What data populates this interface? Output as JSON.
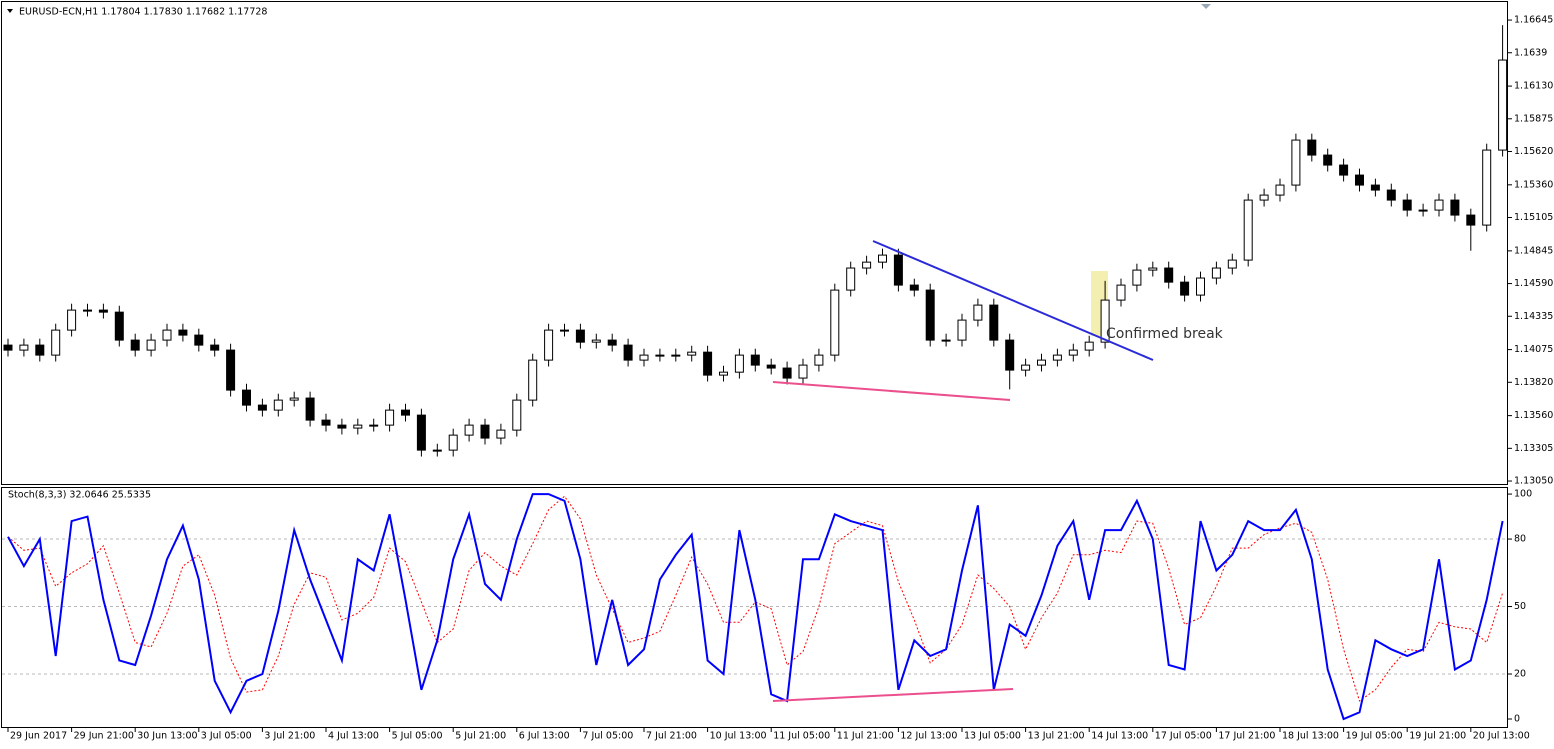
{
  "chart_data": [
    {
      "type": "candlestick",
      "title": "EURUSD-ECN,H1  1.17804 1.17830 1.17682 1.17728",
      "annotation": "Confirmed break",
      "open": [
        1.1411,
        1.14071,
        1.1411,
        1.14032,
        1.14227,
        1.14383,
        1.14383,
        1.14367,
        1.14149,
        1.14071,
        1.14149,
        1.14227,
        1.14188,
        1.1411,
        1.14071,
        1.13759,
        1.13642,
        1.13603,
        1.13681,
        1.13697,
        1.13525,
        1.13486,
        1.13463,
        1.13486,
        1.13486,
        1.13603,
        1.13564,
        1.13291,
        1.13291,
        1.13408,
        1.13486,
        1.13385,
        1.13447,
        1.13681,
        1.13993,
        1.14227,
        1.14227,
        1.14133,
        1.14149,
        1.1411,
        1.13993,
        1.14032,
        1.14032,
        1.14032,
        1.14055,
        1.13876,
        1.13899,
        1.14032,
        1.13954,
        1.13931,
        1.13853,
        1.13954,
        1.14032,
        1.14539,
        1.14711,
        1.14757,
        1.14812,
        1.14578,
        1.14539,
        1.14149,
        1.14149,
        1.14305,
        1.14422,
        1.14149,
        1.13915,
        1.13954,
        1.13993,
        1.14032,
        1.14071,
        1.14133,
        1.14461,
        1.14578,
        1.14695,
        1.14711,
        1.14601,
        1.145,
        1.14633,
        1.14711,
        1.14773,
        1.15241,
        1.1528,
        1.15358,
        1.15709,
        1.15592,
        1.15514,
        1.15436,
        1.15358,
        1.15319,
        1.15241,
        1.15163,
        1.15163,
        1.15241,
        1.15124,
        1.15046,
        1.15631
      ],
      "high": [
        1.1416,
        1.1416,
        1.1416,
        1.14277,
        1.14433,
        1.14433,
        1.14433,
        1.14417,
        1.14199,
        1.14199,
        1.14277,
        1.14277,
        1.14238,
        1.1416,
        1.14121,
        1.13809,
        1.13692,
        1.13731,
        1.13747,
        1.13747,
        1.13575,
        1.13536,
        1.13536,
        1.13536,
        1.13653,
        1.13653,
        1.13614,
        1.13341,
        1.13458,
        1.13536,
        1.13536,
        1.13497,
        1.13731,
        1.14043,
        1.14277,
        1.14277,
        1.14277,
        1.14199,
        1.14199,
        1.1416,
        1.14082,
        1.14082,
        1.14082,
        1.14105,
        1.14105,
        1.13949,
        1.14082,
        1.14082,
        1.14004,
        1.13981,
        1.14004,
        1.14082,
        1.14589,
        1.14761,
        1.14807,
        1.14862,
        1.14862,
        1.14628,
        1.14589,
        1.14199,
        1.14355,
        1.14472,
        1.14472,
        1.14199,
        1.14004,
        1.14043,
        1.14082,
        1.14121,
        1.14183,
        1.14611,
        1.14628,
        1.14745,
        1.14761,
        1.14761,
        1.14651,
        1.14683,
        1.14761,
        1.14823,
        1.15291,
        1.1533,
        1.15408,
        1.15759,
        1.15759,
        1.15642,
        1.15564,
        1.15486,
        1.15408,
        1.15369,
        1.15291,
        1.15213,
        1.15291,
        1.15291,
        1.15174,
        1.15681,
        1.16605
      ],
      "low": [
        1.14021,
        1.14021,
        1.13982,
        1.13982,
        1.14177,
        1.14333,
        1.14317,
        1.14099,
        1.14021,
        1.14021,
        1.14099,
        1.14138,
        1.1406,
        1.14021,
        1.13709,
        1.13592,
        1.13553,
        1.13553,
        1.13631,
        1.13475,
        1.13436,
        1.13413,
        1.13413,
        1.13436,
        1.13436,
        1.13514,
        1.13241,
        1.13241,
        1.13241,
        1.13358,
        1.13335,
        1.13335,
        1.13397,
        1.13631,
        1.13943,
        1.14177,
        1.14083,
        1.14083,
        1.1406,
        1.13943,
        1.13943,
        1.13982,
        1.13982,
        1.13982,
        1.13826,
        1.13826,
        1.13849,
        1.13904,
        1.13881,
        1.13803,
        1.13803,
        1.13904,
        1.13982,
        1.14489,
        1.14661,
        1.14707,
        1.14528,
        1.14489,
        1.14099,
        1.14099,
        1.14099,
        1.14255,
        1.14099,
        1.13765,
        1.13865,
        1.13904,
        1.13943,
        1.13982,
        1.14021,
        1.14083,
        1.14411,
        1.14528,
        1.14645,
        1.14551,
        1.1445,
        1.1445,
        1.14583,
        1.14661,
        1.14723,
        1.15191,
        1.1523,
        1.15308,
        1.15542,
        1.15464,
        1.15386,
        1.15308,
        1.15269,
        1.15191,
        1.15113,
        1.15113,
        1.15113,
        1.15074,
        1.14846,
        1.14996,
        1.15581
      ],
      "close": [
        1.14071,
        1.1411,
        1.14032,
        1.14227,
        1.14383,
        1.14383,
        1.14367,
        1.14149,
        1.14071,
        1.14149,
        1.14227,
        1.14188,
        1.1411,
        1.14071,
        1.13759,
        1.13642,
        1.13603,
        1.13681,
        1.13697,
        1.13525,
        1.13486,
        1.13463,
        1.13486,
        1.13486,
        1.13603,
        1.13564,
        1.13291,
        1.13291,
        1.13408,
        1.13486,
        1.13385,
        1.13447,
        1.13681,
        1.13993,
        1.14227,
        1.14227,
        1.14133,
        1.14149,
        1.1411,
        1.13993,
        1.14032,
        1.14032,
        1.14032,
        1.14055,
        1.13876,
        1.13899,
        1.14032,
        1.13954,
        1.13931,
        1.13853,
        1.13954,
        1.14032,
        1.14539,
        1.14711,
        1.14757,
        1.14812,
        1.14578,
        1.14539,
        1.14149,
        1.14149,
        1.14305,
        1.14422,
        1.14149,
        1.13915,
        1.13954,
        1.13993,
        1.14032,
        1.14071,
        1.14133,
        1.14461,
        1.14578,
        1.14695,
        1.14711,
        1.14601,
        1.145,
        1.14633,
        1.14711,
        1.14773,
        1.15241,
        1.1528,
        1.15358,
        1.15709,
        1.15592,
        1.15514,
        1.15436,
        1.15358,
        1.15319,
        1.15241,
        1.15163,
        1.15163,
        1.15241,
        1.15124,
        1.15046,
        1.15631,
        1.16333
      ],
      "up_color": "#ffffff",
      "down_color": "#000000",
      "wick_color": "#000000",
      "ylim": [
        1.13019,
        1.16778
      ],
      "yticks": [
        1.16645,
        1.1639,
        {
          "value": 1.1613,
          "label": "1.16130"
        },
        1.15875,
        {
          "value": 1.1562,
          "label": "1.15620"
        },
        {
          "value": 1.1536,
          "label": "1.15360"
        },
        1.15105,
        1.14845,
        {
          "value": 1.1459,
          "label": "1.14590"
        },
        1.14335,
        1.14075,
        {
          "value": 1.1382,
          "label": "1.13820"
        },
        {
          "value": 1.1356,
          "label": "1.13560"
        },
        1.13305,
        {
          "value": 1.1305,
          "label": "1.13050"
        }
      ]
    },
    {
      "type": "line",
      "title": "Stoch(8,3,3) 32.0646 25.5335",
      "categories": [
        "29 Jun 2017",
        null,
        null,
        null,
        "29 Jun 21:00",
        null,
        null,
        null,
        "30 Jun 13:00",
        null,
        null,
        null,
        "3 Jul 05:00",
        null,
        null,
        null,
        "3 Jul 21:00",
        null,
        null,
        null,
        "4 Jul 13:00",
        null,
        null,
        null,
        "5 Jul 05:00",
        null,
        null,
        null,
        "5 Jul 21:00",
        null,
        null,
        null,
        "6 Jul 13:00",
        null,
        null,
        null,
        "7 Jul 05:00",
        null,
        null,
        null,
        "7 Jul 21:00",
        null,
        null,
        null,
        "10 Jul 13:00",
        null,
        null,
        null,
        "11 Jul 05:00",
        null,
        null,
        null,
        "11 Jul 21:00",
        null,
        null,
        null,
        "12 Jul 13:00",
        null,
        null,
        null,
        "13 Jul 05:00",
        null,
        null,
        null,
        "13 Jul 21:00",
        null,
        null,
        null,
        "14 Jul 13:00",
        null,
        null,
        null,
        "17 Jul 05:00",
        null,
        null,
        null,
        "17 Jul 21:00",
        null,
        null,
        null,
        "18 Jul 13:00",
        null,
        null,
        null,
        "19 Jul 05:00",
        null,
        null,
        null,
        "19 Jul 21:00",
        null,
        null,
        null,
        "20 Jul 13:00",
        null,
        null
      ],
      "series": [
        {
          "color": "#0000ff",
          "values": [
            81,
            68,
            80,
            28,
            88,
            90,
            53,
            26,
            24,
            46,
            71,
            86,
            62,
            17,
            3,
            17,
            20,
            48,
            84,
            62,
            44,
            26,
            71,
            66,
            91,
            53,
            13,
            35,
            71,
            91,
            60,
            53,
            80,
            100,
            100,
            97,
            71,
            24,
            53,
            24,
            31,
            62,
            73,
            82,
            26,
            20,
            84,
            53,
            11,
            8,
            71,
            71,
            91,
            88,
            86,
            84,
            13,
            35,
            28,
            31,
            66,
            95,
            13,
            42,
            37,
            55,
            77,
            88,
            53,
            84,
            84,
            97,
            80,
            24,
            22,
            88,
            66,
            73,
            88,
            84,
            84,
            93,
            71,
            22,
            0,
            3,
            35,
            31,
            28,
            31,
            71,
            22,
            26,
            53,
            88
          ]
        },
        {
          "color": "#ff0000",
          "dashed": true,
          "values": [
            81,
            75,
            76,
            59,
            65,
            69,
            77,
            56,
            34,
            32,
            47,
            68,
            73,
            55,
            27,
            12,
            13,
            28,
            51,
            65,
            63,
            44,
            47,
            54,
            76,
            70,
            52,
            34,
            40,
            66,
            74,
            68,
            64,
            78,
            93,
            99,
            89,
            64,
            49,
            34,
            36,
            39,
            55,
            72,
            60,
            43,
            43,
            52,
            49,
            24,
            30,
            50,
            78,
            83,
            88,
            86,
            61,
            44,
            25,
            31,
            42,
            64,
            58,
            50,
            31,
            45,
            56,
            73,
            73,
            75,
            74,
            88,
            87,
            67,
            42,
            45,
            59,
            76,
            76,
            82,
            85,
            87,
            83,
            62,
            31,
            8,
            13,
            23,
            31,
            30,
            43,
            41,
            40,
            34,
            56
          ]
        }
      ],
      "ylim": [
        -4,
        102.7
      ],
      "yticks": [
        100,
        80,
        50,
        20,
        0
      ],
      "levels": [
        80,
        50,
        20
      ]
    }
  ]
}
